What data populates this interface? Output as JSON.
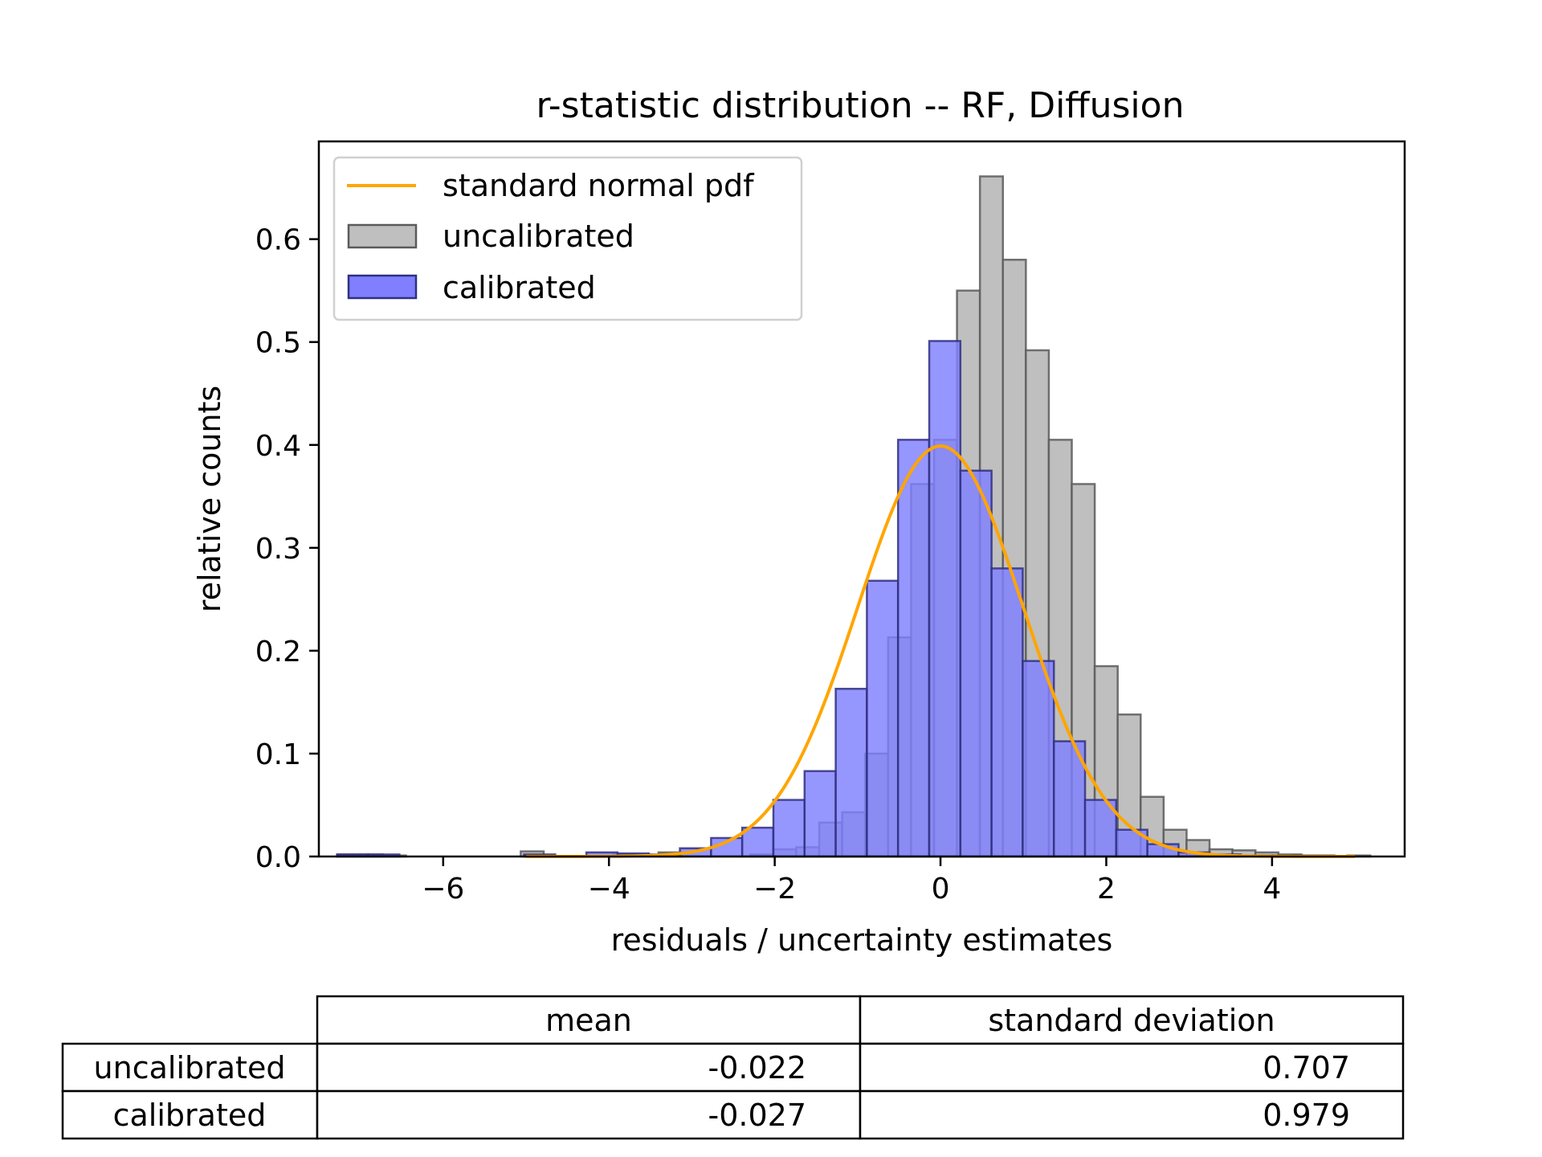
{
  "chart_data": {
    "type": "bar",
    "title": "r-statistic distribution -- RF, Diffusion",
    "xlabel": "residuals / uncertainty estimates",
    "ylabel": "relative counts",
    "xlim": [
      -7.5,
      5.6
    ],
    "ylim": [
      0,
      0.695
    ],
    "xticks": [
      -6,
      -4,
      -2,
      0,
      2,
      4
    ],
    "xtick_labels": [
      "−6",
      "−4",
      "−2",
      "0",
      "2",
      "4"
    ],
    "yticks": [
      0.0,
      0.1,
      0.2,
      0.3,
      0.4,
      0.5,
      0.6
    ],
    "ytick_labels": [
      "0.0",
      "0.1",
      "0.2",
      "0.3",
      "0.4",
      "0.5",
      "0.6"
    ],
    "grid": false,
    "legend_position": "top-left",
    "legend": [
      "standard normal pdf",
      "uncalibrated",
      "calibrated"
    ],
    "colors": {
      "pdf": "#ffa500",
      "uncalibrated_fill": "#bfbfbf",
      "uncalibrated_edge": "#5a5a5a",
      "calibrated_fill": "#7f7fff",
      "calibrated_edge": "#303080"
    },
    "series": [
      {
        "name": "uncalibrated",
        "bin_start": -7.28,
        "bin_width": 0.277,
        "values": [
          0.002,
          0.002,
          0.001,
          0,
          0,
          0,
          0,
          0,
          0.005,
          0,
          0,
          0,
          0.002,
          0,
          0.004,
          0,
          0,
          0,
          0.002,
          0.007,
          0.009,
          0.033,
          0.043,
          0.1,
          0.213,
          0.362,
          0.405,
          0.55,
          0.661,
          0.58,
          0.492,
          0.405,
          0.362,
          0.185,
          0.138,
          0.058,
          0.026,
          0.016,
          0.007,
          0.006,
          0.004,
          0.002,
          0,
          0,
          0.001
        ]
      },
      {
        "name": "calibrated",
        "bin_start": -7.28,
        "bin_width": 0.376,
        "values": [
          0.002,
          0.002,
          0,
          0,
          0,
          0,
          0.002,
          0,
          0.004,
          0.003,
          0.002,
          0.008,
          0.018,
          0.028,
          0.055,
          0.083,
          0.163,
          0.268,
          0.405,
          0.501,
          0.375,
          0.28,
          0.19,
          0.112,
          0.055,
          0.026,
          0.012,
          0.004,
          0.002,
          0.001,
          0.001,
          0.001,
          0
        ]
      },
      {
        "name": "standard normal pdf",
        "function": "normal_pdf",
        "x_range": [
          -5,
          5
        ],
        "mean": 0,
        "std": 1
      }
    ]
  },
  "table": {
    "headers": [
      "mean",
      "standard deviation"
    ],
    "rows": [
      {
        "label": "uncalibrated",
        "mean": "-0.022",
        "std": "0.707"
      },
      {
        "label": "calibrated",
        "mean": "-0.027",
        "std": "0.979"
      }
    ]
  }
}
